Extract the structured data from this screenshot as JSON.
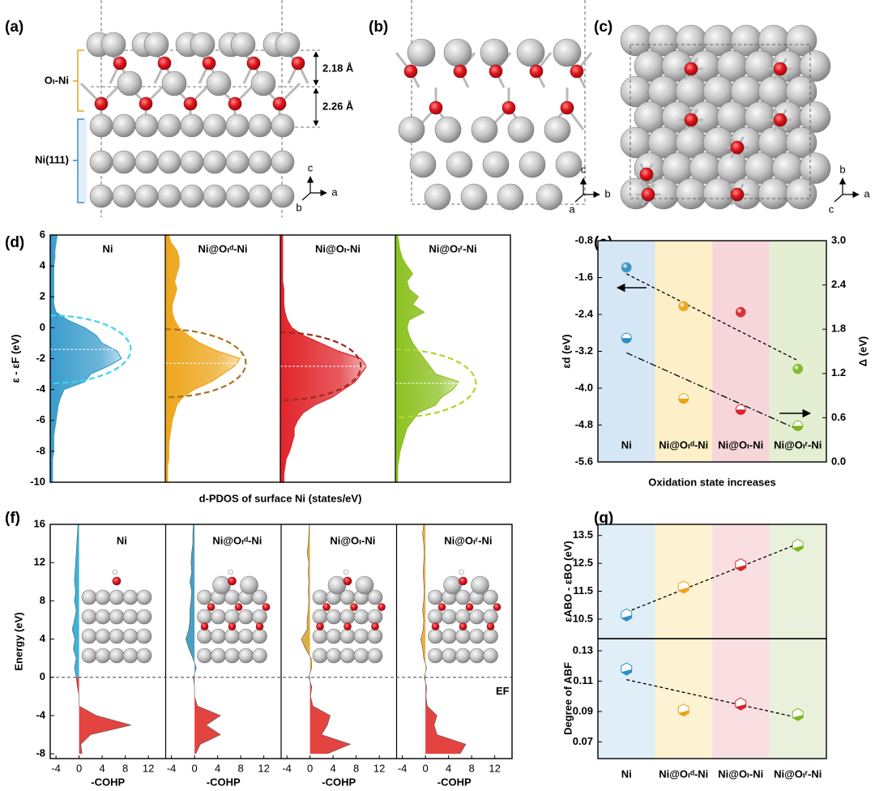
{
  "panel_labels": [
    "(a)",
    "(b)",
    "(c)",
    "(d)",
    "(e)",
    "(f)",
    "(g)"
  ],
  "structures": {
    "a": {
      "labels": [
        "Oₗ-Ni",
        "Ni(111)"
      ],
      "distances": [
        "2.18 Å",
        "2.26 Å"
      ],
      "axes": [
        "c",
        "a",
        "b"
      ]
    },
    "b": {
      "axes": [
        "c",
        "b",
        "a"
      ]
    },
    "c": {
      "axes": [
        "b",
        "a",
        "c"
      ]
    }
  },
  "chart_data": [
    {
      "type": "area",
      "ylabel": "ε - εF (eV)",
      "xlabel": "d-PDOS of surface Ni (states/eV)",
      "ylim": [
        -10,
        6
      ],
      "yticks": [
        -10,
        -8,
        -6,
        -4,
        -2,
        0,
        2,
        4,
        6
      ],
      "xlim": [
        0,
        1
      ],
      "energies": [
        -10,
        -9.5,
        -9,
        -8.5,
        -8,
        -7.5,
        -7,
        -6.5,
        -6,
        -5.5,
        -5,
        -4.5,
        -4,
        -3.5,
        -3,
        -2.5,
        -2,
        -1.5,
        -1,
        -0.5,
        0,
        0.5,
        1,
        1.5,
        2,
        2.5,
        3,
        3.5,
        4,
        4.5,
        5,
        5.5,
        6
      ],
      "panels": [
        {
          "title": "Ni",
          "color": "#3a9ccc",
          "ellipse_color": "#3fd3ec",
          "band_center": -1.4,
          "values": [
            0.02,
            0.02,
            0.02,
            0.02,
            0.03,
            0.03,
            0.03,
            0.04,
            0.05,
            0.06,
            0.07,
            0.09,
            0.12,
            0.3,
            0.35,
            0.5,
            0.62,
            0.58,
            0.45,
            0.4,
            0.3,
            0.15,
            0.05,
            0.03,
            0.03,
            0.03,
            0.03,
            0.03,
            0.03,
            0.04,
            0.04,
            0.05,
            0.06
          ]
        },
        {
          "title": "Ni@Oₗᵈ-Ni",
          "color": "#eda61c",
          "ellipse_color": "#a8741c",
          "band_center": -2.3,
          "values": [
            0.02,
            0.02,
            0.02,
            0.03,
            0.03,
            0.03,
            0.04,
            0.05,
            0.06,
            0.08,
            0.1,
            0.15,
            0.25,
            0.4,
            0.5,
            0.6,
            0.65,
            0.45,
            0.3,
            0.2,
            0.12,
            0.08,
            0.06,
            0.06,
            0.08,
            0.1,
            0.08,
            0.1,
            0.12,
            0.12,
            0.1,
            0.05,
            0.03
          ]
        },
        {
          "title": "Ni@Oₗ-Ni",
          "color": "#e0242a",
          "ellipse_color": "#9c2a1e",
          "band_center": -2.5,
          "values": [
            0.03,
            0.03,
            0.04,
            0.05,
            0.08,
            0.1,
            0.12,
            0.12,
            0.15,
            0.2,
            0.3,
            0.45,
            0.55,
            0.65,
            0.7,
            0.75,
            0.7,
            0.5,
            0.35,
            0.2,
            0.1,
            0.06,
            0.04,
            0.03,
            0.03,
            0.03,
            0.02,
            0.02,
            0.02,
            0.02,
            0.02,
            0.02,
            0.02
          ]
        },
        {
          "title": "Ni@Oₗʳ-Ni",
          "color": "#8cc11f",
          "ellipse_color": "#b2d62c",
          "band_center": -3.6,
          "values": [
            0.02,
            0.02,
            0.02,
            0.03,
            0.04,
            0.06,
            0.08,
            0.1,
            0.15,
            0.2,
            0.35,
            0.4,
            0.5,
            0.55,
            0.35,
            0.3,
            0.25,
            0.2,
            0.15,
            0.12,
            0.1,
            0.12,
            0.25,
            0.15,
            0.2,
            0.12,
            0.1,
            0.15,
            0.1,
            0.06,
            0.04,
            0.03,
            0.02
          ]
        }
      ]
    },
    {
      "type": "scatter",
      "xlabel": "Oxidation state increases",
      "ylabel": "εd (eV)",
      "y2label": "Δ (eV)",
      "categories": [
        "Ni",
        "Ni@Oₗᵈ-Ni",
        "Ni@Oₗ-Ni",
        "Ni@Oₗʳ-Ni"
      ],
      "colors": [
        "#2f8fc4",
        "#eba21a",
        "#d8242a",
        "#7db61f"
      ],
      "background_colors": [
        "#d5e6f4",
        "#fdf0c8",
        "#f7d6da",
        "#e3eed2"
      ],
      "ylim": [
        -5.6,
        -0.8
      ],
      "yticks": [
        -5.6,
        -4.8,
        {
          "value": -4,
          "label": "-4.0"
        },
        -3.2,
        -2.4,
        -1.6,
        -0.8
      ],
      "y2lim": [
        0,
        3
      ],
      "y2ticks": [
        {
          "value": 0,
          "label": "0.0"
        },
        0.6,
        1.2,
        1.8,
        2.4,
        {
          "value": 3,
          "label": "3.0"
        }
      ],
      "series": [
        {
          "values": [
            -1.38,
            -2.22,
            -2.35,
            -3.58
          ],
          "trend": [
            -1.52,
            -3.4
          ]
        },
        {
          "axis": "y2",
          "values": [
            1.68,
            0.86,
            0.71,
            0.49
          ],
          "trend": [
            1.48,
            0.44
          ]
        }
      ]
    },
    {
      "type": "area",
      "ylabel": "Energy (eV)",
      "xlabel": "-COHP",
      "ef_label": "EF",
      "ylim": [
        -8.5,
        16
      ],
      "yticks": [
        -8,
        -4,
        0,
        4,
        8,
        12,
        16
      ],
      "xlim": [
        -5,
        15
      ],
      "xticks": [
        -4,
        0,
        4,
        8,
        12
      ],
      "energies": [
        -8,
        -7,
        -6,
        -5,
        -4,
        -3,
        -2,
        -1,
        0,
        1,
        2,
        3,
        4,
        5,
        6,
        7,
        8,
        9,
        10,
        11,
        12,
        13,
        14,
        15,
        16
      ],
      "panels": [
        {
          "title": "Ni",
          "color": "#1ba6d0",
          "color_below": "#e0302a",
          "values": [
            0.5,
            0.3,
            2,
            9,
            3,
            0,
            0,
            -0.3,
            -0.5,
            -0.8,
            -0.5,
            -1,
            -0.7,
            -1.2,
            -0.8,
            -0.5,
            -0.8,
            -0.6,
            -0.8,
            -0.7,
            -0.6,
            -0.5,
            -0.4,
            -0.3,
            -0.2
          ]
        },
        {
          "title": "Ni@Oₗᵈ-Ni",
          "color": "#2b8fb4",
          "color_below": "#e0302a",
          "values": [
            0.2,
            1,
            4.5,
            2,
            4.5,
            0.5,
            0,
            0,
            -0.2,
            0.3,
            -0.3,
            -1,
            -1.5,
            -1,
            -0.8,
            -0.8,
            -0.6,
            -0.5,
            -0.8,
            -0.5,
            -0.6,
            -0.5,
            -0.3,
            -0.3,
            -0.2
          ]
        },
        {
          "title": "Ni@Oₗ-Ni",
          "color": "#d7a122",
          "color_below": "#e0302a",
          "values": [
            3,
            7,
            2,
            3,
            3.5,
            0.5,
            0.1,
            0.3,
            -0.2,
            0.3,
            0.2,
            -0.8,
            -1.5,
            -0.5,
            -0.5,
            -0.3,
            -0.2,
            -0.3,
            -0.2,
            -0.3,
            -0.2,
            -0.5,
            -0.3,
            -0.2,
            -0.1
          ]
        },
        {
          "title": "Ni@Oₗʳ-Ni",
          "color": "#f0a020",
          "color_below": "#e0302a",
          "values": [
            6,
            7,
            2,
            1.5,
            2,
            0.3,
            0.1,
            0.2,
            -0.2,
            0.2,
            -0.3,
            -0.5,
            -0.8,
            -0.4,
            -0.3,
            -0.5,
            -0.3,
            -0.2,
            -0.3,
            -0.4,
            -0.3,
            -0.2,
            -0.3,
            -0.5,
            -0.3
          ]
        }
      ]
    },
    {
      "type": "scatter",
      "categories": [
        "Ni",
        "Ni@Oₗᵈ-Ni",
        "Ni@Oₗ-Ni",
        "Ni@Oₗʳ-Ni"
      ],
      "colors": [
        "#2f8fc4",
        "#eba21a",
        "#d8242a",
        "#7db61f"
      ],
      "background_colors": [
        "#e0eef8",
        "#fdf3d2",
        "#f9dfe2",
        "#e9f1dc"
      ],
      "panels": [
        {
          "ylabel": "εABO - εBO (eV)",
          "ylim": [
            9.8,
            13.9
          ],
          "yticks": [
            10.5,
            11.5,
            12.5,
            13.5
          ],
          "values": [
            10.65,
            11.65,
            12.45,
            13.15
          ],
          "trend": [
            10.75,
            13.2
          ]
        },
        {
          "ylabel": "Degree of ABF",
          "ylim": [
            0.059,
            0.138
          ],
          "yticks": [
            0.07,
            0.09,
            0.11,
            0.13
          ],
          "values": [
            0.118,
            0.091,
            0.095,
            0.088
          ],
          "trend": [
            0.111,
            0.086
          ]
        }
      ]
    }
  ]
}
